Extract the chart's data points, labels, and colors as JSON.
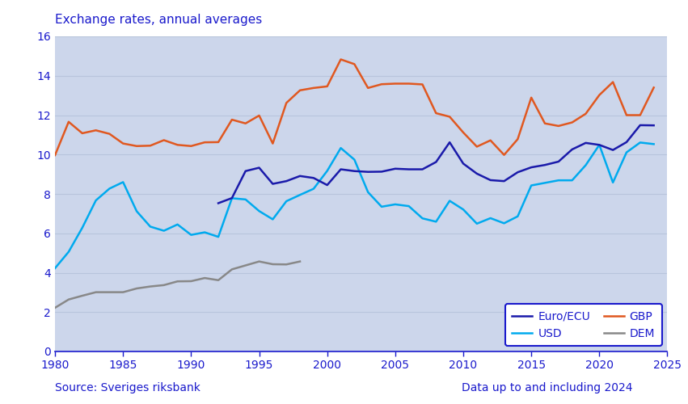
{
  "title": "Exchange rates, annual averages",
  "source_text": "Source: Sveriges riksbank",
  "data_note": "Data up to and including 2024",
  "background_color": "#ccd6eb",
  "plot_bg_color": "#ccd6eb",
  "footer_bg_color": "#ffffff",
  "years": [
    1980,
    1981,
    1982,
    1983,
    1984,
    1985,
    1986,
    1987,
    1988,
    1989,
    1990,
    1991,
    1992,
    1993,
    1994,
    1995,
    1996,
    1997,
    1998,
    1999,
    2000,
    2001,
    2002,
    2003,
    2004,
    2005,
    2006,
    2007,
    2008,
    2009,
    2010,
    2011,
    2012,
    2013,
    2014,
    2015,
    2016,
    2017,
    2018,
    2019,
    2020,
    2021,
    2022,
    2023,
    2024
  ],
  "euro_ecu_full": [
    null,
    null,
    null,
    null,
    null,
    null,
    null,
    null,
    null,
    null,
    null,
    null,
    7.53,
    7.79,
    9.16,
    9.33,
    8.51,
    8.65,
    8.91,
    8.81,
    8.45,
    9.25,
    9.16,
    9.12,
    9.13,
    9.28,
    9.25,
    9.25,
    9.62,
    10.62,
    9.54,
    9.03,
    8.7,
    8.65,
    9.1,
    9.35,
    9.47,
    9.64,
    10.26,
    10.59,
    10.49,
    10.23,
    10.63,
    11.49,
    11.48
  ],
  "usd": [
    4.23,
    5.06,
    6.28,
    7.67,
    8.27,
    8.6,
    7.12,
    6.34,
    6.13,
    6.45,
    5.92,
    6.05,
    5.82,
    7.78,
    7.72,
    7.13,
    6.71,
    7.63,
    7.95,
    8.26,
    9.17,
    10.33,
    9.74,
    8.09,
    7.35,
    7.47,
    7.38,
    6.76,
    6.59,
    7.65,
    7.21,
    6.49,
    6.77,
    6.51,
    6.86,
    8.43,
    8.56,
    8.69,
    8.69,
    9.46,
    10.49,
    8.58,
    10.11,
    10.61,
    10.53
  ],
  "gbp": [
    9.97,
    11.66,
    11.08,
    11.23,
    11.05,
    10.56,
    10.43,
    10.45,
    10.73,
    10.49,
    10.43,
    10.62,
    10.63,
    11.77,
    11.58,
    11.98,
    10.56,
    12.62,
    13.26,
    13.38,
    13.46,
    14.83,
    14.59,
    13.38,
    13.57,
    13.6,
    13.6,
    13.56,
    12.1,
    11.92,
    11.12,
    10.4,
    10.72,
    9.98,
    10.78,
    12.89,
    11.58,
    11.45,
    11.63,
    12.07,
    13.02,
    13.68,
    12.0,
    12.0,
    13.4
  ],
  "dem": [
    2.22,
    2.64,
    2.83,
    3.01,
    3.01,
    3.01,
    3.2,
    3.3,
    3.37,
    3.56,
    3.57,
    3.73,
    3.62,
    4.17,
    4.37,
    4.57,
    4.43,
    4.42,
    4.57,
    null,
    null,
    null,
    null,
    null,
    null,
    null,
    null,
    null,
    null,
    null,
    null,
    null,
    null,
    null,
    null,
    null,
    null,
    null,
    null,
    null,
    null,
    null,
    null,
    null,
    null
  ],
  "colors": {
    "euro_ecu": "#1a1aaa",
    "usd": "#00aaee",
    "gbp": "#e05820",
    "dem": "#888888"
  },
  "ylim": [
    0,
    16
  ],
  "yticks": [
    0,
    2,
    4,
    6,
    8,
    10,
    12,
    14,
    16
  ],
  "xlim": [
    1980,
    2025
  ],
  "xticks": [
    1980,
    1985,
    1990,
    1995,
    2000,
    2005,
    2010,
    2015,
    2020,
    2025
  ],
  "grid_color": "#b8c4dc",
  "text_color": "#1a1acc",
  "line_width": 1.8
}
